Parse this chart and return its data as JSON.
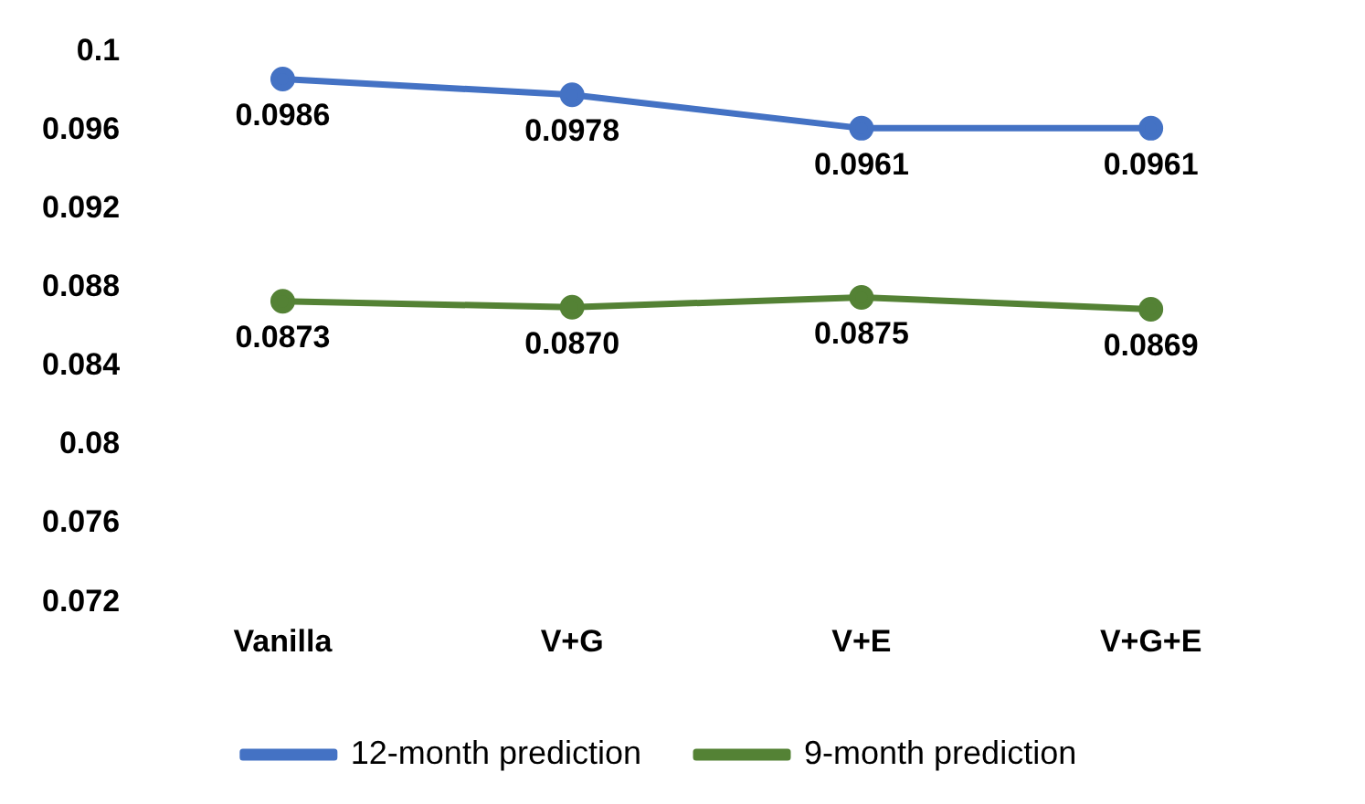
{
  "chart_data": {
    "type": "line",
    "categories": [
      "Vanilla",
      "V+G",
      "V+E",
      "V+G+E"
    ],
    "series": [
      {
        "name": "12-month prediction",
        "color": "#4472c4",
        "values": [
          0.0986,
          0.0978,
          0.0961,
          0.0961
        ],
        "value_labels": [
          "0.0986",
          "0.0978",
          "0.0961",
          "0.0961"
        ]
      },
      {
        "name": "9-month prediction",
        "color": "#548235",
        "values": [
          0.0873,
          0.087,
          0.0875,
          0.0869
        ],
        "value_labels": [
          "0.0873",
          "0.0870",
          "0.0875",
          "0.0869"
        ]
      }
    ],
    "ylim": [
      0.072,
      0.1
    ],
    "yticks": [
      0.072,
      0.076,
      0.08,
      0.084,
      0.088,
      0.092,
      0.096,
      0.1
    ],
    "grid": false,
    "legend": "bottom",
    "marker": "circle",
    "line_style": "solid"
  }
}
